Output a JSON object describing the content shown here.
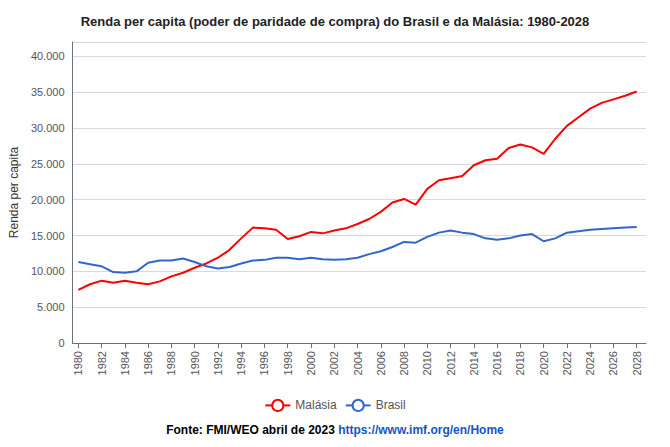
{
  "chart_data": {
    "type": "line",
    "title": "Renda per capita (poder de paridade de compra) do Brasil e da Malásia: 1980-2028",
    "ylabel": "Renda per capita",
    "annotations": [
      "Fonte: FMI/WEO abril de 2023",
      "https://www.imf.org/en/Home"
    ],
    "x": [
      1980,
      1981,
      1982,
      1983,
      1984,
      1985,
      1986,
      1987,
      1988,
      1989,
      1990,
      1991,
      1992,
      1993,
      1994,
      1995,
      1996,
      1997,
      1998,
      1999,
      2000,
      2001,
      2002,
      2003,
      2004,
      2005,
      2006,
      2007,
      2008,
      2009,
      2010,
      2011,
      2012,
      2013,
      2014,
      2015,
      2016,
      2017,
      2018,
      2019,
      2020,
      2021,
      2022,
      2023,
      2024,
      2025,
      2026,
      2027,
      2028
    ],
    "series": [
      {
        "name": "Malásia",
        "color": "#FF0000",
        "values": [
          7400,
          8200,
          8700,
          8400,
          8700,
          8400,
          8200,
          8600,
          9300,
          9800,
          10500,
          11100,
          11900,
          13000,
          14600,
          16100,
          16000,
          15800,
          14500,
          14900,
          15500,
          15300,
          15700,
          16000,
          16600,
          17300,
          18300,
          19600,
          20100,
          19300,
          21500,
          22700,
          23000,
          23300,
          24800,
          25500,
          25700,
          27200,
          27700,
          27300,
          26400,
          28500,
          30300,
          31500,
          32700,
          33500,
          34000,
          34500,
          35100
        ]
      },
      {
        "name": "Brasil",
        "color": "#3366CC",
        "values": [
          11300,
          11000,
          10700,
          9900,
          9800,
          10000,
          11200,
          11500,
          11500,
          11800,
          11300,
          10700,
          10400,
          10600,
          11100,
          11500,
          11600,
          11900,
          11900,
          11700,
          11900,
          11700,
          11600,
          11700,
          11900,
          12400,
          12800,
          13400,
          14100,
          14000,
          14800,
          15400,
          15700,
          15400,
          15200,
          14600,
          14400,
          14600,
          15000,
          15200,
          14200,
          14600,
          15400,
          15600,
          15800,
          15900,
          16000,
          16100,
          16200
        ]
      }
    ],
    "xlim": [
      1979.5,
      2028.8
    ],
    "xticks": [
      1980,
      1982,
      1984,
      1986,
      1988,
      1990,
      1992,
      1994,
      1996,
      1998,
      2000,
      2002,
      2004,
      2006,
      2008,
      2010,
      2012,
      2014,
      2016,
      2018,
      2020,
      2022,
      2024,
      2026,
      2028
    ],
    "ylim": [
      0,
      42000
    ],
    "yticks": [
      0,
      {
        "value": 5000,
        "label": "5.000"
      },
      {
        "value": 10000,
        "label": "10.000"
      },
      {
        "value": 15000,
        "label": "15.000"
      },
      {
        "value": 20000,
        "label": "20.000"
      },
      {
        "value": 25000,
        "label": "25.000"
      },
      {
        "value": 30000,
        "label": "30.000"
      },
      {
        "value": 35000,
        "label": "35.000"
      },
      {
        "value": 40000,
        "label": "40.000"
      }
    ],
    "grid": true,
    "legend": "bottom"
  }
}
